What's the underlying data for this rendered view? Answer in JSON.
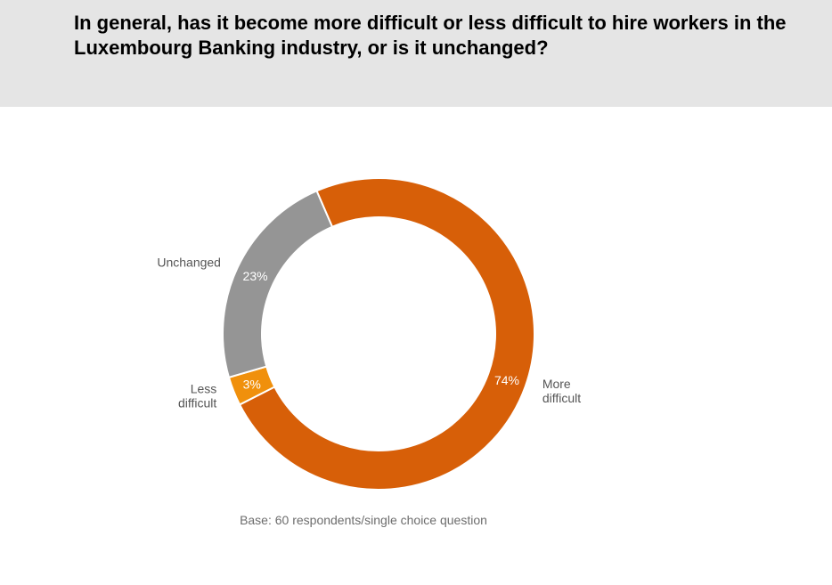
{
  "header": {
    "question": "In general, has it become more difficult or less difficult to hire workers in the Luxembourg Banking industry, or is it unchanged?"
  },
  "chart_data": {
    "type": "pie",
    "donut": true,
    "categories": [
      "More difficult",
      "Less difficult",
      "Unchanged"
    ],
    "values": [
      74,
      3,
      23
    ],
    "value_labels": [
      "74%",
      "3%",
      "23%"
    ],
    "label_lines": [
      [
        "More",
        "difficult"
      ],
      [
        "Less",
        "difficult"
      ],
      [
        "Unchanged"
      ]
    ],
    "colors": [
      "#d75f08",
      "#f0900c",
      "#959595"
    ],
    "title": "",
    "legend": "none"
  },
  "footnote": "Base: 60 respondents/single choice question"
}
